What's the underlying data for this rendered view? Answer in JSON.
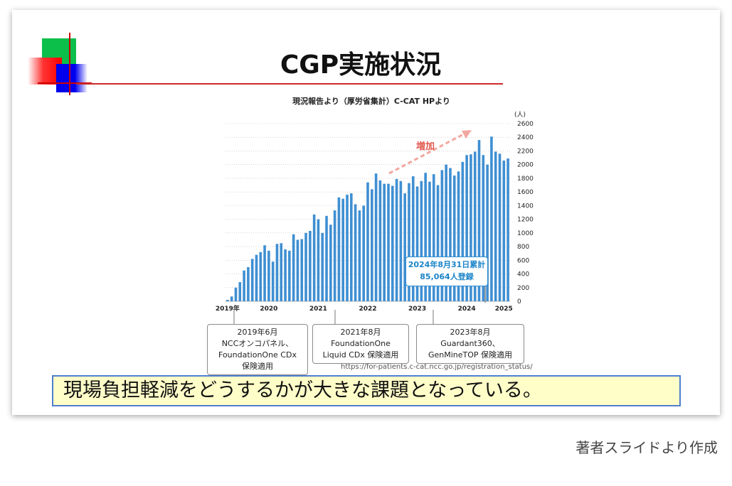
{
  "slide": {
    "title": "CGP実施状況",
    "banner": "現場負担軽減をどうするかが大きな課題となっている。"
  },
  "caption": "著者スライドより作成",
  "chart_data": {
    "type": "bar",
    "title": "現況報告より（厚労省集計）C-CAT HPより",
    "unit": "(人)",
    "ylim": [
      0,
      2600
    ],
    "yticks": [
      0,
      200,
      400,
      600,
      800,
      1000,
      1200,
      1400,
      1600,
      1800,
      2000,
      2200,
      2400,
      2600
    ],
    "grid": true,
    "x_tick_labels": [
      "2019年",
      "2020",
      "2021",
      "2022",
      "2023",
      "2024",
      "2025"
    ],
    "x_tick_index": [
      0,
      10,
      22,
      34,
      46,
      58,
      67
    ],
    "values": [
      20,
      70,
      200,
      280,
      450,
      500,
      620,
      680,
      720,
      820,
      740,
      580,
      840,
      850,
      760,
      740,
      980,
      900,
      910,
      1000,
      1030,
      1270,
      1200,
      1000,
      1250,
      1120,
      1330,
      1520,
      1500,
      1560,
      1580,
      1420,
      1330,
      1400,
      1740,
      1640,
      1870,
      1770,
      1720,
      1720,
      1690,
      1790,
      1760,
      1580,
      1730,
      1830,
      1680,
      1760,
      1880,
      1750,
      1860,
      1700,
      1920,
      2000,
      1950,
      1840,
      1900,
      2040,
      2140,
      2150,
      2190,
      2360,
      2140,
      2000,
      2410,
      2190,
      2160,
      2060,
      2090
    ],
    "bar_color": "#3f8fd2",
    "annotation_arrow_label": "増加",
    "callout": {
      "line1": "2024年8月31日累計",
      "line2": "85,064人登録"
    },
    "events": [
      {
        "date": "2019年6月",
        "lines": [
          "NCCオンコパネル、",
          "FoundationOne CDx",
          "保険適用"
        ]
      },
      {
        "date": "2021年8月",
        "lines": [
          "FoundationOne",
          "Liquid CDx 保険適用"
        ]
      },
      {
        "date": "2023年8月",
        "lines": [
          "Guardant360、",
          "GenMineTOP 保険適用"
        ]
      }
    ],
    "source": "https://for-patients.c-cat.ncc.go.jp/registration_status/"
  }
}
